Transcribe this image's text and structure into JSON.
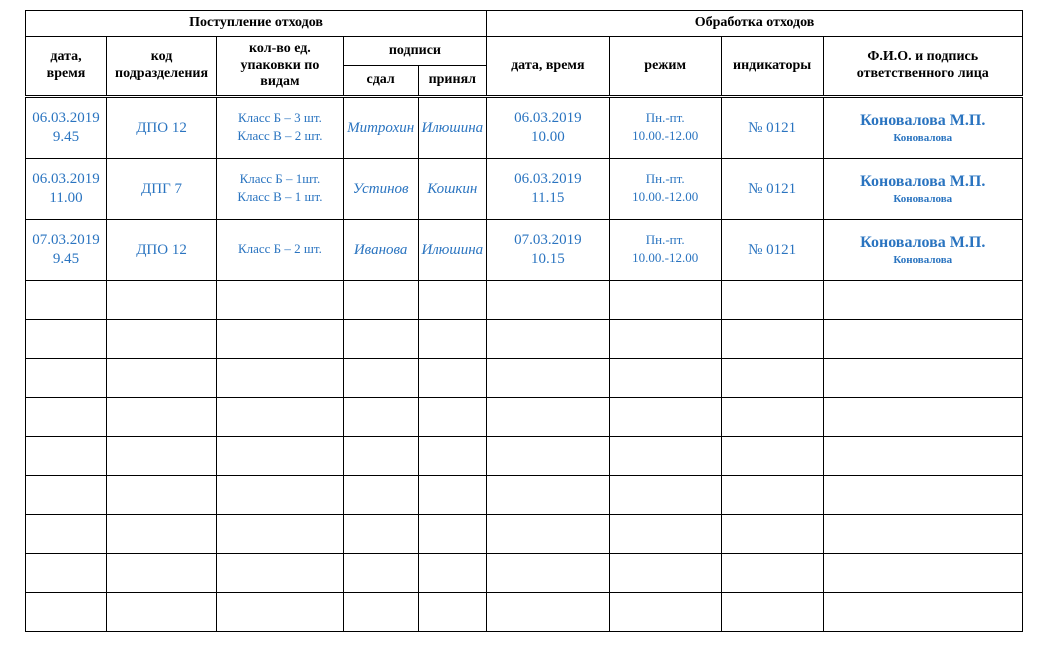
{
  "headers": {
    "section_incoming": "Поступление отходов",
    "section_processing": "Обработка отходов",
    "date_time": "дата,\nвремя",
    "dept_code": "код\nподразделения",
    "package_counts": "кол-во ед.\nупаковки по\nвидам",
    "signatures": "подписи",
    "sig_gave": "сдал",
    "sig_took": "принял",
    "proc_date_time": "дата, время",
    "mode": "режим",
    "indicators": "индикаторы",
    "responsible": "Ф.И.О. и подпись\nответственного лица"
  },
  "rows": [
    {
      "in_date": "06.03.2019\n9.45",
      "dept": "ДПО 12",
      "packs": "Класс Б – 3 шт.\nКласс В – 2 шт.",
      "gave": "Митрохин",
      "took": "Илюшина",
      "proc_date": "06.03.2019\n10.00",
      "mode": "Пн.-пт.\n10.00.-12.00",
      "indicator": "№ 0121",
      "resp_name": "Коновалова М.П.",
      "resp_sig": "Коновалова"
    },
    {
      "in_date": "06.03.2019\n11.00",
      "dept": "ДПГ 7",
      "packs": "Класс Б – 1шт.\nКласс В – 1 шт.",
      "gave": "Устинов",
      "took": "Кошкин",
      "proc_date": "06.03.2019\n11.15",
      "mode": "Пн.-пт.\n10.00.-12.00",
      "indicator": "№ 0121",
      "resp_name": "Коновалова М.П.",
      "resp_sig": "Коновалова"
    },
    {
      "in_date": "07.03.2019\n9.45",
      "dept": "ДПО 12",
      "packs": "Класс Б – 2 шт.",
      "gave": "Иванова",
      "took": "Илюшина",
      "proc_date": "07.03.2019\n10.15",
      "mode": "Пн.-пт.\n10.00.-12.00",
      "indicator": "№ 0121",
      "resp_name": "Коновалова М.П.",
      "resp_sig": "Коновалова"
    }
  ],
  "empty_row_count": 9,
  "style": {
    "hand_color": "#2a74c0",
    "header_font": "Times New Roman",
    "hand_font": "Segoe Script",
    "border_color": "#000000",
    "background": "#ffffff",
    "header_font_size_pt": 11,
    "hand_font_size_pt": 11
  }
}
